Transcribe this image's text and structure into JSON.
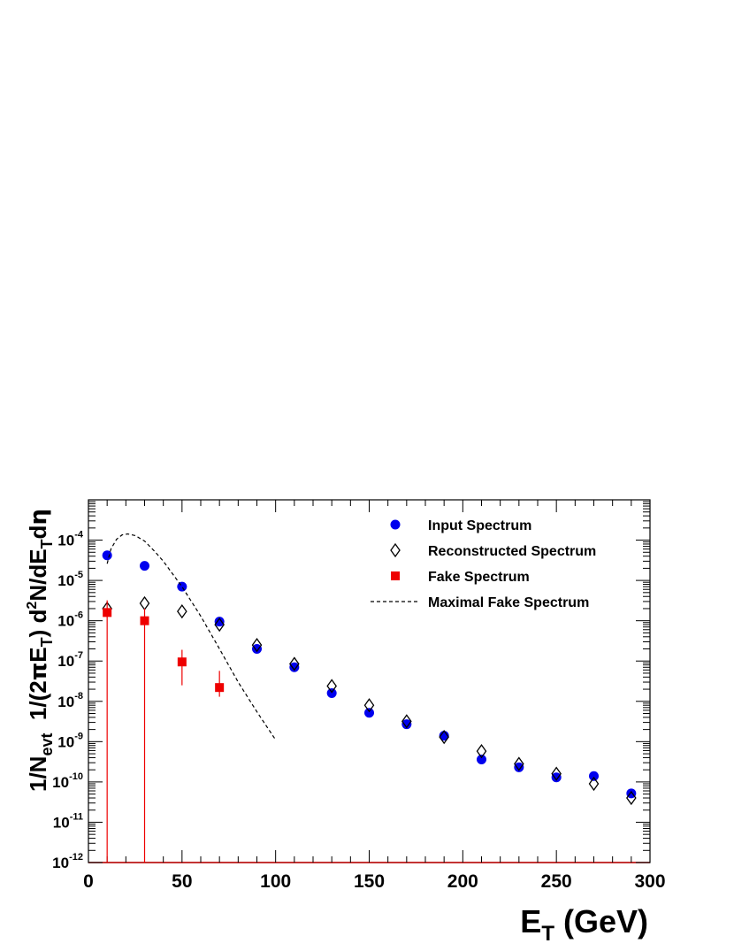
{
  "chart_data": {
    "type": "scatter",
    "xlabel": {
      "main": "E",
      "sub": "T",
      "rest": " (GeV)"
    },
    "ylabel": {
      "p1": "1/N",
      "p1_sub": "evt",
      "p2": "  1/(2",
      "pi": "π",
      "p3": "E",
      "p3_sub": "T",
      "p4": ") d",
      "p4_sup": "2",
      "p5": "N/dE",
      "p5_sub": "T",
      "p6": "d",
      "eta": "η"
    },
    "xlim": [
      0,
      300
    ],
    "ylim": [
      1e-12,
      0.001
    ],
    "yscale": "log",
    "x_ticks": [
      0,
      50,
      100,
      150,
      200,
      250,
      300
    ],
    "x_tick_labels": [
      "0",
      "50",
      "100",
      "150",
      "200",
      "250",
      "300"
    ],
    "y_tick_labels": [
      {
        "base": "10",
        "exp": "-12",
        "value": 1e-12
      },
      {
        "base": "10",
        "exp": "-11",
        "value": 1e-11
      },
      {
        "base": "10",
        "exp": "-10",
        "value": 1e-10
      },
      {
        "base": "10",
        "exp": "-9",
        "value": 1e-09
      },
      {
        "base": "10",
        "exp": "-8",
        "value": 1e-08
      },
      {
        "base": "10",
        "exp": "-7",
        "value": 1e-07
      },
      {
        "base": "10",
        "exp": "-6",
        "value": 1e-06
      },
      {
        "base": "10",
        "exp": "-5",
        "value": 1e-05
      },
      {
        "base": "10",
        "exp": "-4",
        "value": 0.0001
      }
    ],
    "legend_position": "top-right",
    "series": [
      {
        "name": "Input Spectrum",
        "marker": "circle",
        "color": "#0000ee",
        "x": [
          10,
          30,
          50,
          70,
          90,
          110,
          130,
          150,
          170,
          190,
          210,
          230,
          250,
          270,
          290
        ],
        "y": [
          4.2e-05,
          2.3e-05,
          7e-06,
          9.5e-07,
          2e-07,
          7e-08,
          1.6e-08,
          5.2e-09,
          2.7e-09,
          1.4e-09,
          3.6e-10,
          2.3e-10,
          1.3e-10,
          1.4e-10,
          5.2e-11
        ]
      },
      {
        "name": "Reconstructed Spectrum",
        "marker": "open-diamond",
        "color": "#000000",
        "x": [
          10,
          30,
          50,
          70,
          90,
          110,
          130,
          150,
          170,
          190,
          210,
          230,
          250,
          270,
          290
        ],
        "y": [
          2e-06,
          2.7e-06,
          1.7e-06,
          8e-07,
          2.5e-07,
          8.5e-08,
          2.4e-08,
          8e-09,
          3.2e-09,
          1.3e-09,
          5.8e-10,
          2.8e-10,
          1.6e-10,
          9e-11,
          4e-11
        ]
      },
      {
        "name": "Fake Spectrum",
        "marker": "square",
        "color": "#ee0000",
        "x": [
          10,
          30,
          50,
          70
        ],
        "y": [
          1.6e-06,
          1e-06,
          9.5e-08,
          2.2e-08
        ],
        "err_low": [
          1.6e-06,
          1e-06,
          7e-08,
          9e-09
        ],
        "err_high": [
          1.6e-06,
          1e-06,
          9.5e-08,
          3.5e-08
        ]
      },
      {
        "name": "Maximal Fake Spectrum",
        "marker": "dashed-line",
        "color": "#000000",
        "x": [
          10,
          12,
          15,
          18,
          21,
          25,
          30,
          35,
          40,
          50,
          60,
          70,
          80,
          90,
          100
        ],
        "y": [
          2.6e-05,
          6e-05,
          0.000105,
          0.000135,
          0.000142,
          0.00013,
          9.5e-05,
          5.5e-05,
          3e-05,
          7e-06,
          1.3e-06,
          2e-07,
          3e-08,
          5.5e-09,
          1.1e-09
        ]
      }
    ]
  }
}
